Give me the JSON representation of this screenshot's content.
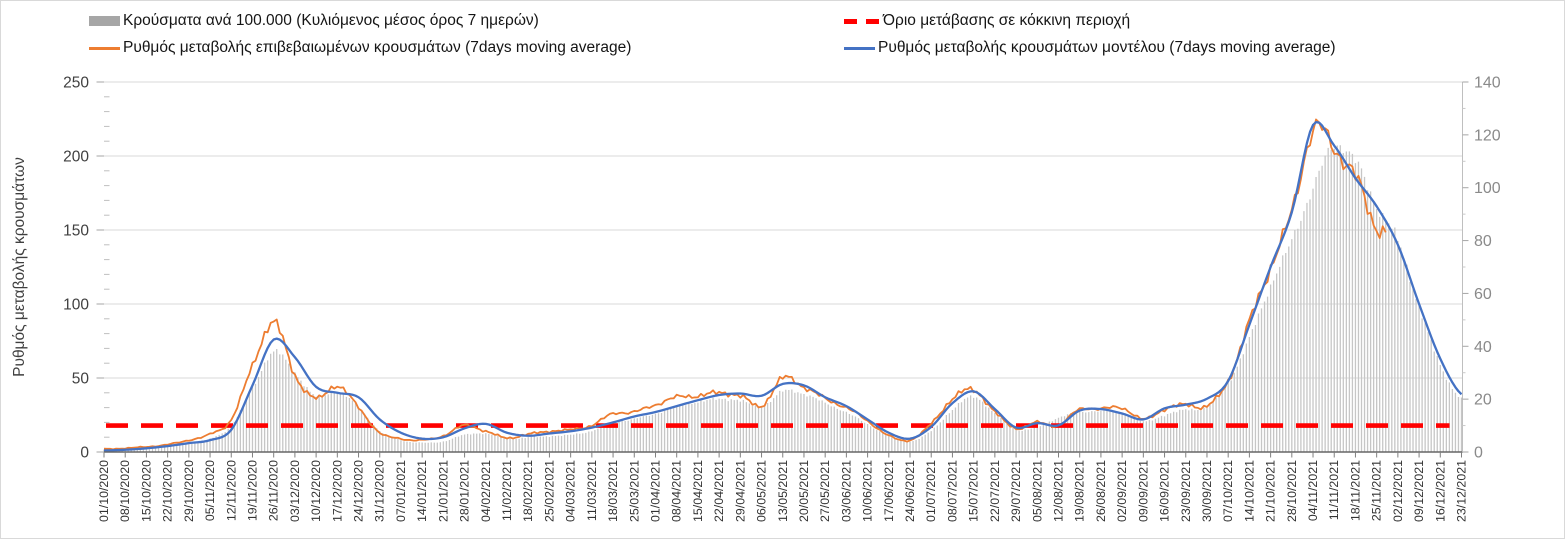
{
  "legend": {
    "items": [
      {
        "id": "cases-per-100k",
        "swatch": "bar",
        "color": "#A6A6A6",
        "label": "Κρούσματα ανά 100.000 (Κυλιόμενος μέσος όρος 7 ημερών)"
      },
      {
        "id": "red-threshold",
        "swatch": "dash",
        "color": "#FF0000",
        "label": "Όριο μετάβασης σε κόκκινη περιοχή"
      },
      {
        "id": "confirmed-rate",
        "swatch": "line",
        "color": "#ED7D31",
        "label": "Ρυθμός μεταβολής επιβεβαιωμένων κρουσμάτων (7days moving average)"
      },
      {
        "id": "model-rate",
        "swatch": "line",
        "color": "#4472C4",
        "label": "Ρυθμός μεταβολής κρουσμάτων μοντέλου (7days moving average)"
      }
    ]
  },
  "chart_data": {
    "type": "combo-bar-line",
    "title": "",
    "y_left": {
      "label": "Ρυθμός μεταβολής κρουσμάτων",
      "min": 0,
      "max": 250,
      "major_tick": 50,
      "minor_tick": 10
    },
    "y_right": {
      "label": "",
      "min": 0,
      "max": 140,
      "major_tick": 20,
      "minor_tick": 10
    },
    "grid": "horizontal-left-majors",
    "legend_position": "top",
    "threshold": {
      "name": "Όριο μετάβασης σε κόκκινη περιοχή",
      "axis": "right",
      "value": 10,
      "color": "#FF0000",
      "style": "dashed"
    },
    "x_weekly_labels": [
      "01/10/2020",
      "08/10/2020",
      "15/10/2020",
      "22/10/2020",
      "29/10/2020",
      "05/11/2020",
      "12/11/2020",
      "19/11/2020",
      "26/11/2020",
      "03/12/2020",
      "10/12/2020",
      "17/12/2020",
      "24/12/2020",
      "31/12/2020",
      "07/01/2021",
      "14/01/2021",
      "21/01/2021",
      "28/01/2021",
      "04/02/2021",
      "11/02/2021",
      "18/02/2021",
      "25/02/2021",
      "04/03/2021",
      "11/03/2021",
      "18/03/2021",
      "25/03/2021",
      "01/04/2021",
      "08/04/2021",
      "15/04/2021",
      "22/04/2021",
      "29/04/2021",
      "06/05/2021",
      "13/05/2021",
      "20/05/2021",
      "27/05/2021",
      "03/06/2021",
      "10/06/2021",
      "17/06/2021",
      "24/06/2021",
      "01/07/2021",
      "08/07/2021",
      "15/07/2021",
      "22/07/2021",
      "29/07/2021",
      "05/08/2021",
      "12/08/2021",
      "19/08/2021",
      "26/08/2021",
      "02/09/2021",
      "09/09/2021",
      "16/09/2021",
      "23/09/2021",
      "30/09/2021",
      "07/10/2021",
      "14/10/2021",
      "21/10/2021",
      "28/10/2021",
      "04/11/2021",
      "11/11/2021",
      "18/11/2021",
      "25/11/2021",
      "02/12/2021",
      "09/12/2021",
      "16/12/2021",
      "23/12/2021"
    ],
    "series": [
      {
        "name": "Κρούσματα ανά 100.000 (Κυλιόμενος μέσος όρος 7 ημερών)",
        "type": "bar",
        "axis": "right",
        "color": "#c6c6c6",
        "weekly_values": [
          0.8,
          1,
          1.4,
          2,
          3,
          5,
          10,
          24,
          38,
          30,
          21,
          23,
          17,
          8,
          4.5,
          3.5,
          4,
          6.5,
          7,
          5,
          5.5,
          6,
          6.5,
          8,
          11,
          12.5,
          14.5,
          17,
          19,
          20,
          19.5,
          17,
          23,
          22,
          18.5,
          15,
          10.5,
          6,
          4,
          8,
          16,
          21,
          14.5,
          8.5,
          9.5,
          13,
          15,
          15.5,
          15,
          11.5,
          14,
          16,
          17,
          26,
          43,
          63,
          80,
          100,
          116,
          110,
          93,
          80,
          55,
          33,
          20
        ]
      },
      {
        "name": "Ρυθμός μεταβολής επιβεβαιωμένων κρουσμάτων (7days moving average)",
        "type": "line",
        "axis": "left",
        "color": "#ED7D31",
        "jitter": true,
        "weekly_values": [
          2,
          2.5,
          3.5,
          5,
          8,
          12,
          22,
          58,
          88,
          52,
          36,
          45,
          30,
          13,
          9,
          8,
          11,
          18,
          14,
          9.5,
          12,
          14,
          15,
          18,
          26,
          27,
          32,
          37,
          38,
          40,
          38,
          31,
          50,
          44,
          36,
          30,
          21,
          11,
          8,
          19,
          36,
          42,
          27,
          16,
          20,
          18,
          29,
          29,
          30,
          22,
          29,
          32,
          31,
          48,
          88,
          125,
          162,
          218,
          205,
          186,
          152,
          null,
          null,
          null,
          null
        ]
      },
      {
        "name": "Ρυθμός μεταβολής κρουσμάτων μοντέλου (7days moving average)",
        "type": "line",
        "axis": "left",
        "color": "#4472C4",
        "jitter": false,
        "weekly_values": [
          1,
          1.5,
          2.5,
          4,
          6,
          8,
          15,
          45,
          76,
          64,
          44,
          40,
          37,
          22,
          13,
          9,
          10,
          16,
          19,
          13,
          11,
          12.5,
          14,
          16.5,
          20,
          24,
          27,
          31,
          35,
          38.5,
          39.5,
          38,
          46,
          45,
          37,
          31,
          22,
          13,
          9,
          17,
          33,
          41,
          29,
          16.5,
          19.5,
          18,
          28,
          29,
          26,
          22,
          29.5,
          32,
          36,
          48,
          86,
          125,
          162,
          221,
          207,
          185,
          166,
          140,
          100,
          63,
          39
        ]
      }
    ],
    "colors": {
      "grid": "#d9d9d9",
      "axis_line": "#666666",
      "right_axis_line": "#bfbfbf",
      "left_tick_text": "#404040",
      "right_tick_text": "#8a8a8a",
      "date_text": "#333333"
    }
  }
}
